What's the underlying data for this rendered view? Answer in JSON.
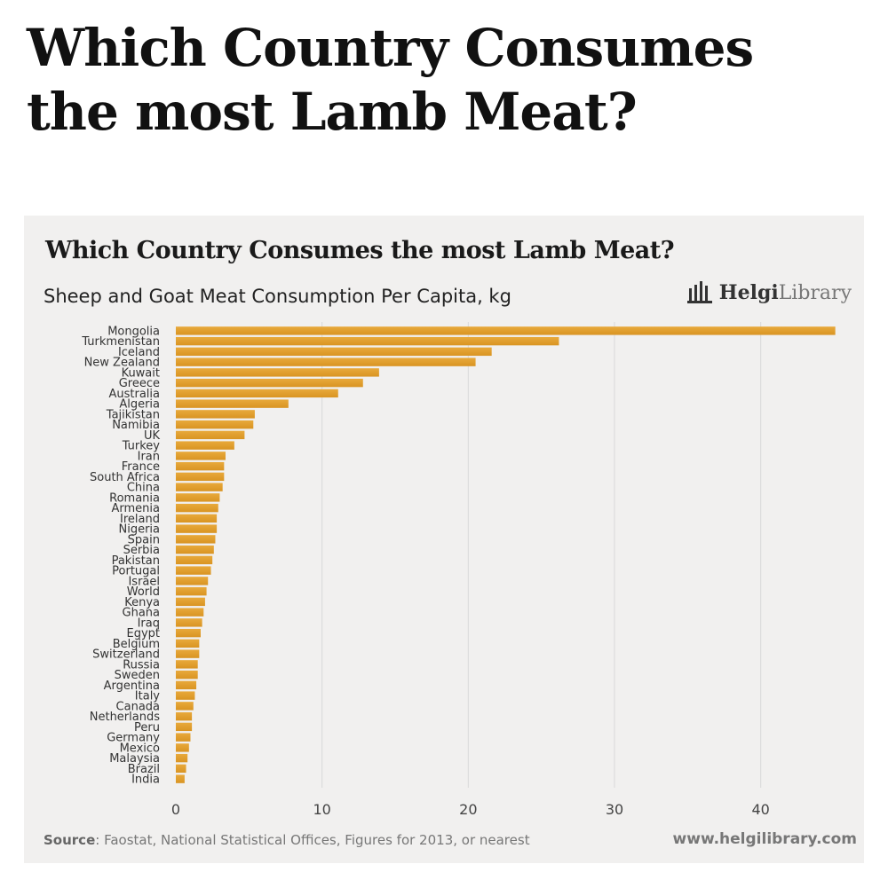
{
  "page": {
    "title": "Which Country Consumes the most Lamb Meat?"
  },
  "brand": {
    "name_bold": "Helgi",
    "name_light": "Library",
    "icon": "library-building-icon"
  },
  "footer": {
    "source_label": "Source",
    "source_text": ": Faostat, National Statistical Offices, Figures for 2013, or nearest",
    "website": "www.helgilibrary.com"
  },
  "colors": {
    "bar": "#e8a93b",
    "bar_dark": "#d99422",
    "grid": "#d9d9d9",
    "panel": "#f1f0ef"
  },
  "chart_data": {
    "type": "bar",
    "orientation": "horizontal",
    "title": "Which Country Consumes the most Lamb Meat?",
    "subtitle": "Sheep and Goat Meat Consumption Per Capita, kg",
    "xlim": [
      0,
      45
    ],
    "xticks": [
      0,
      10,
      20,
      30,
      40
    ],
    "grid": true,
    "categories": [
      "Mongolia",
      "Turkmenistan",
      "Iceland",
      "New Zealand",
      "Kuwait",
      "Greece",
      "Australia",
      "Algeria",
      "Tajikistan",
      "Namibia",
      "UK",
      "Turkey",
      "Iran",
      "France",
      "South Africa",
      "China",
      "Romania",
      "Armenia",
      "Ireland",
      "Nigeria",
      "Spain",
      "Serbia",
      "Pakistan",
      "Portugal",
      "Israel",
      "World",
      "Kenya",
      "Ghana",
      "Iraq",
      "Egypt",
      "Belgium",
      "Switzerland",
      "Russia",
      "Sweden",
      "Argentina",
      "Italy",
      "Canada",
      "Netherlands",
      "Peru",
      "Germany",
      "Mexico",
      "Malaysia",
      "Brazil",
      "India"
    ],
    "values": [
      45.1,
      26.2,
      21.6,
      20.5,
      13.9,
      12.8,
      11.1,
      7.7,
      5.4,
      5.3,
      4.7,
      4.0,
      3.4,
      3.3,
      3.3,
      3.2,
      3.0,
      2.9,
      2.8,
      2.8,
      2.7,
      2.6,
      2.5,
      2.4,
      2.2,
      2.1,
      2.0,
      1.9,
      1.8,
      1.7,
      1.6,
      1.6,
      1.5,
      1.5,
      1.4,
      1.3,
      1.2,
      1.1,
      1.1,
      1.0,
      0.9,
      0.8,
      0.7,
      0.6
    ]
  }
}
